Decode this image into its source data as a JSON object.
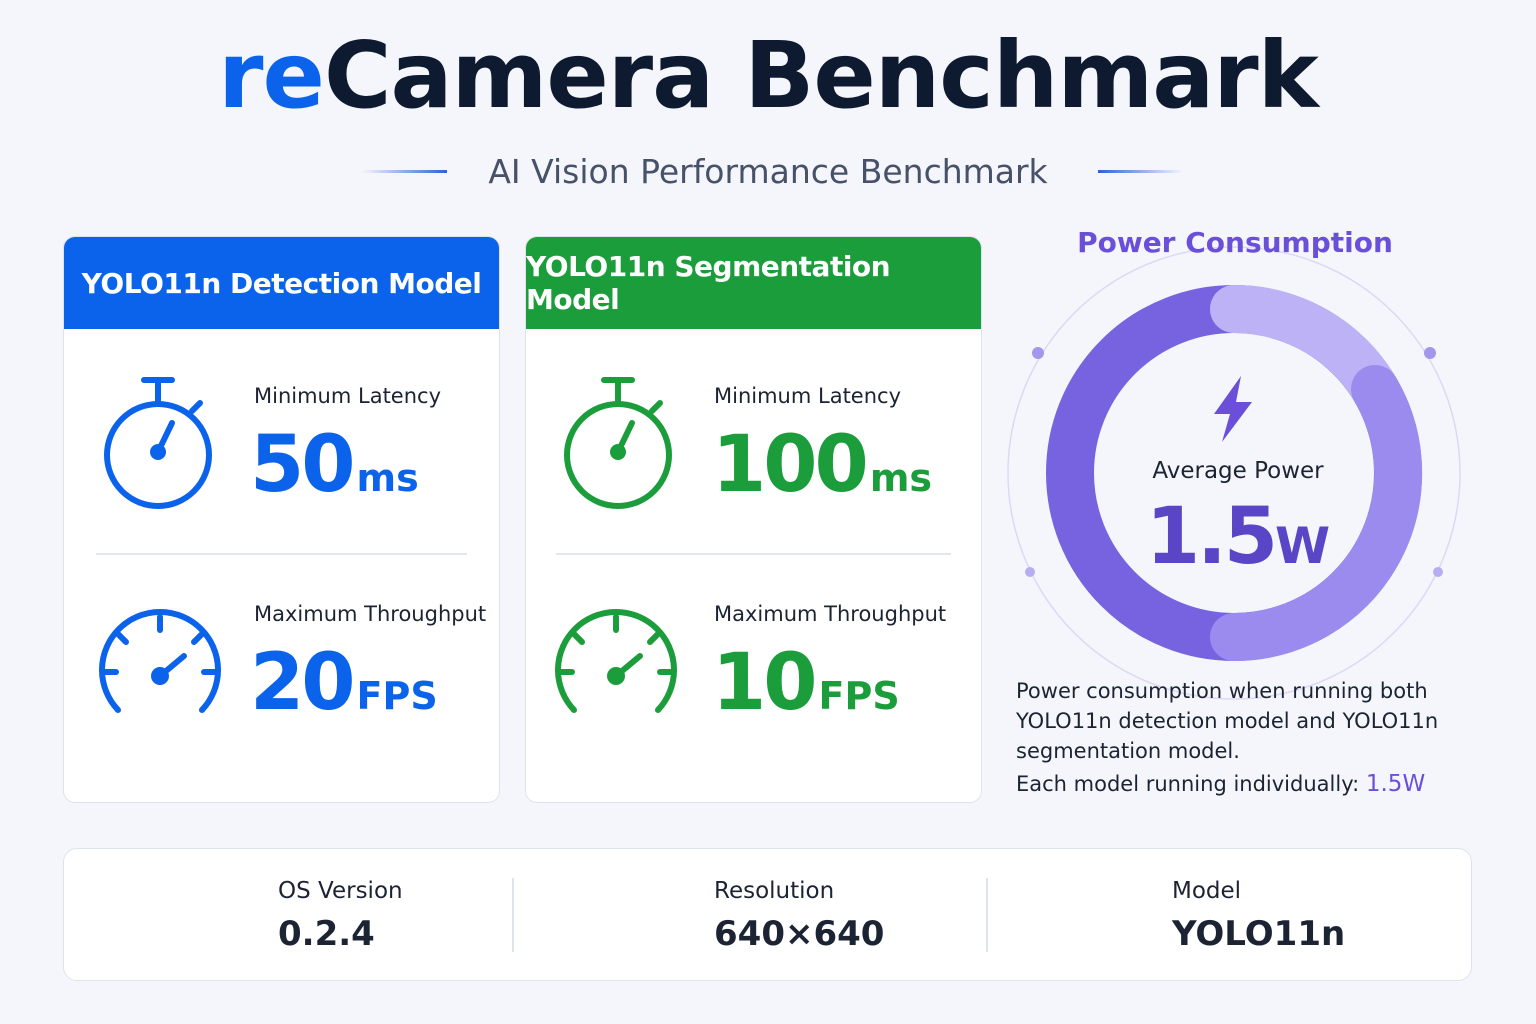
{
  "header": {
    "title": {
      "accent": "re",
      "main": "Camera Benchmark"
    },
    "subtitle": "AI Vision Performance Benchmark"
  },
  "cards": [
    {
      "title": "YOLO11n Detection Model",
      "metrics": [
        {
          "label": "Minimum Latency",
          "value": 50,
          "unit": "ms"
        },
        {
          "label": "Maximum Throughput",
          "value": 20,
          "unit": "FPS"
        }
      ]
    },
    {
      "title": "YOLO11n Segmentation Model",
      "metrics": [
        {
          "label": "Minimum Latency",
          "value": 100,
          "unit": "ms"
        },
        {
          "label": "Maximum Throughput",
          "value": 10,
          "unit": "FPS"
        }
      ]
    }
  ],
  "power": {
    "title": "Power Consumption",
    "label": "Average Power",
    "value": 1.5,
    "unit": "W",
    "note": "Power consumption when running both YOLO11n detection model and YOLO11n segmentation model.",
    "individual": {
      "label": "Each model running individually:",
      "value": 1.5,
      "unit": "W"
    }
  },
  "footer": [
    {
      "label": "OS Version",
      "value": "0.2.4"
    },
    {
      "label": "Resolution",
      "value": "640×640"
    },
    {
      "label": "Model",
      "value": "YOLO11n"
    }
  ]
}
